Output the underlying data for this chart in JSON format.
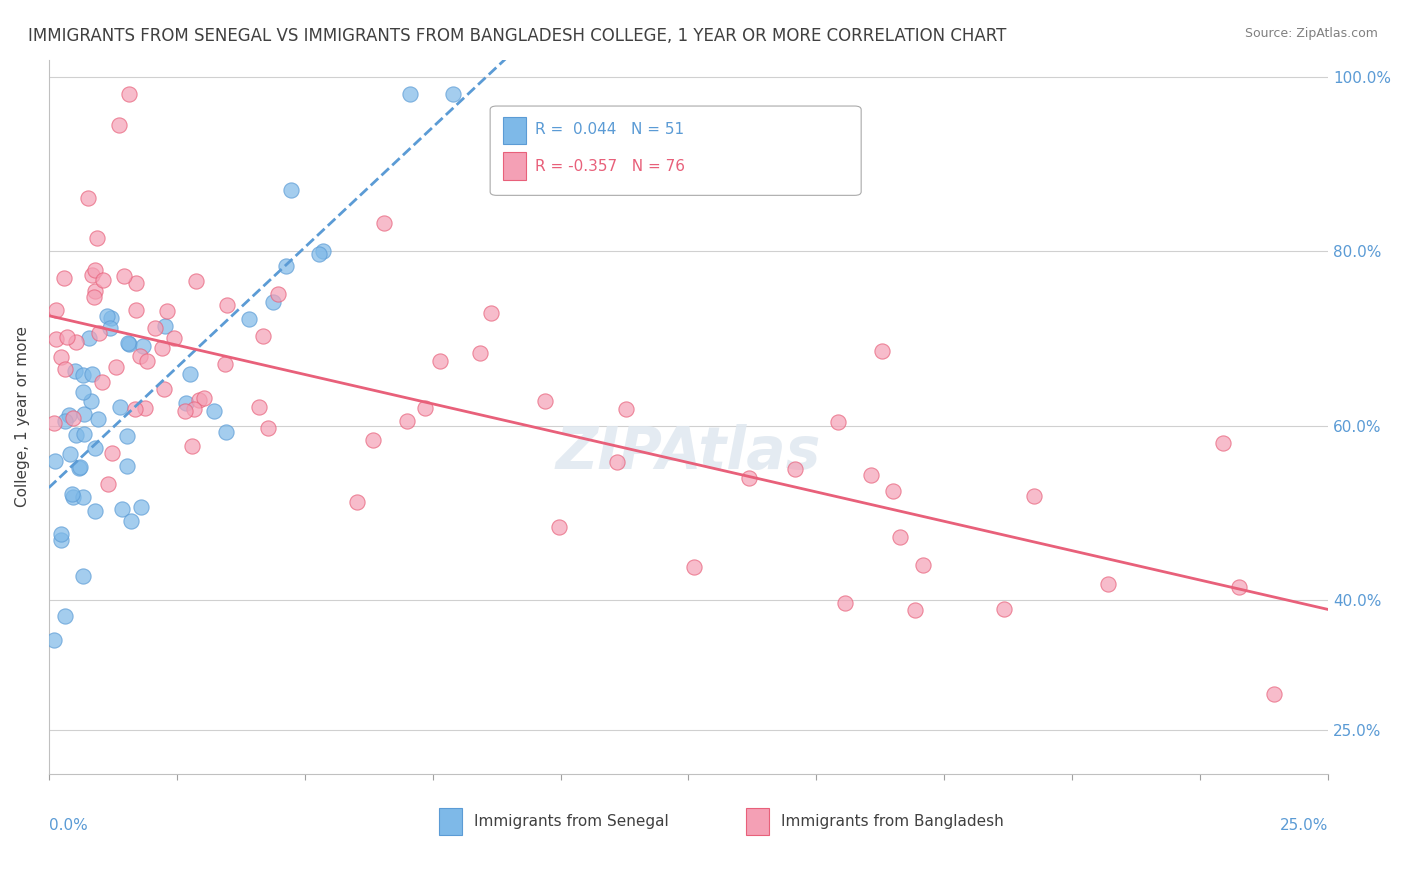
{
  "title": "IMMIGRANTS FROM SENEGAL VS IMMIGRANTS FROM BANGLADESH COLLEGE, 1 YEAR OR MORE CORRELATION CHART",
  "source": "Source: ZipAtlas.com",
  "legend_senegal": "Immigrants from Senegal",
  "legend_bangladesh": "Immigrants from Bangladesh",
  "ylabel": "College, 1 year or more",
  "R_senegal": 0.044,
  "N_senegal": 51,
  "R_bangladesh": -0.357,
  "N_bangladesh": 76,
  "color_senegal": "#7EB9E8",
  "color_bangladesh": "#F4A0B5",
  "trendline_senegal": "#5B9BD5",
  "trendline_bangladesh": "#E8607A",
  "xlim": [
    0.0,
    0.25
  ],
  "ylim": [
    0.2,
    1.02
  ],
  "background": "#FFFFFF",
  "grid_color": "#D0D0D0",
  "title_color": "#404040",
  "y_ticks": [
    0.25,
    0.4,
    0.6,
    0.8,
    1.0
  ]
}
